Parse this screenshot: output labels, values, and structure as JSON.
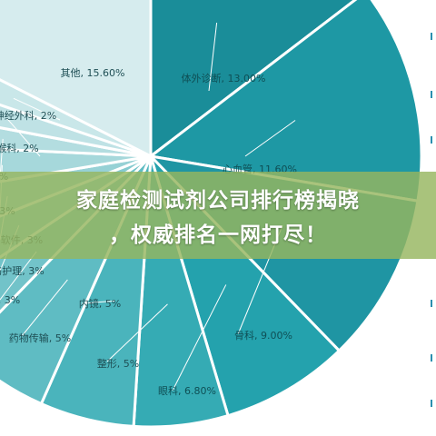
{
  "chart_data": {
    "type": "pie",
    "slices": [
      {
        "label": "体外诊断, 13.00%",
        "value": 13.0,
        "color": "#1a8d99"
      },
      {
        "label": "心血管, 11.60%",
        "value": 11.6,
        "color": "#1e98a4"
      },
      {
        "label": "骨科, 9.00%",
        "value": 9.0,
        "color": "#1f95a3"
      },
      {
        "label": "眼科, 6.80%",
        "value": 6.8,
        "color": "#24a2ad"
      },
      {
        "label": "整形, 5%",
        "value": 5.0,
        "color": "#35abb4"
      },
      {
        "label": "内镜, 5%",
        "value": 5.0,
        "color": "#4ab4bc"
      },
      {
        "label": "药物传输, 5%",
        "value": 5.0,
        "color": "#5fbcc3"
      },
      {
        "label": ", 3%",
        "value": 3.0,
        "color": "#72c3c9"
      },
      {
        "label": "伤护理, 3%",
        "value": 3.0,
        "color": "#84cacf"
      },
      {
        "label": "软件, 3%",
        "value": 3.0,
        "color": "#96d1d5"
      },
      {
        "label": "3%",
        "value": 3.0,
        "color": "#a6d8db"
      },
      {
        "label": "%",
        "value": 2.0,
        "color": "#b3dde0"
      },
      {
        "label": "鼻喉科, 2%",
        "value": 2.0,
        "color": "#bfe2e5"
      },
      {
        "label": "神经外科, 2%",
        "value": 2.0,
        "color": "#c9e7e9"
      },
      {
        "label": "其他, 15.60%",
        "value": 15.6,
        "color": "#d6ecee"
      }
    ]
  },
  "banner": {
    "line1": "家庭检测试剂公司排行榜揭晓",
    "line2": "，权威排名一网打尽！"
  }
}
